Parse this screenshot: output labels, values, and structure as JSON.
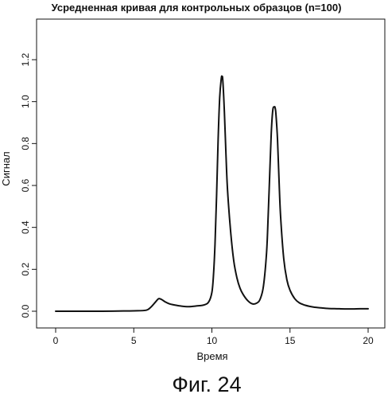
{
  "chart_data": {
    "type": "line",
    "title": "Усредненная кривая для контрольных образцов (n=100)",
    "xlabel": "Время",
    "ylabel": "Сигнал",
    "xlim": [
      0,
      20
    ],
    "ylim": [
      0,
      1.3
    ],
    "x_ticks": [
      "0",
      "5",
      "10",
      "15",
      "20"
    ],
    "y_ticks": [
      "0.0",
      "0.2",
      "0.4",
      "0.6",
      "0.8",
      "1.0",
      "1.2"
    ],
    "grid": false,
    "legend": "none",
    "line_color": "#111111",
    "series": [
      {
        "x": [
          0,
          1,
          2,
          3,
          4,
          5,
          5.8,
          6.1,
          6.4,
          6.6,
          6.8,
          7.0,
          7.3,
          7.6,
          8.0,
          8.5,
          9.0,
          9.5,
          9.8,
          10.0,
          10.1,
          10.2,
          10.3,
          10.4,
          10.5,
          10.6,
          10.65,
          10.7,
          10.8,
          10.9,
          11.0,
          11.2,
          11.4,
          11.6,
          11.8,
          12.0,
          12.3,
          12.6,
          12.9,
          13.1,
          13.3,
          13.5,
          13.6,
          13.7,
          13.8,
          13.9,
          14.0,
          14.05,
          14.1,
          14.2,
          14.3,
          14.4,
          14.6,
          14.8,
          15.0,
          15.3,
          15.6,
          16.0,
          16.5,
          17.0,
          17.5,
          18.0,
          18.5,
          19.0,
          19.5,
          20.0
        ],
        "y": [
          0.0,
          0.0,
          0.0,
          0.0,
          0.001,
          0.002,
          0.005,
          0.02,
          0.045,
          0.06,
          0.055,
          0.045,
          0.035,
          0.03,
          0.025,
          0.022,
          0.025,
          0.03,
          0.045,
          0.09,
          0.17,
          0.32,
          0.55,
          0.82,
          1.02,
          1.11,
          1.12,
          1.1,
          0.95,
          0.75,
          0.58,
          0.38,
          0.24,
          0.16,
          0.11,
          0.08,
          0.05,
          0.035,
          0.04,
          0.06,
          0.12,
          0.28,
          0.45,
          0.65,
          0.85,
          0.96,
          0.975,
          0.97,
          0.94,
          0.82,
          0.62,
          0.45,
          0.25,
          0.15,
          0.1,
          0.06,
          0.04,
          0.028,
          0.02,
          0.016,
          0.013,
          0.012,
          0.011,
          0.011,
          0.012,
          0.012
        ]
      }
    ]
  },
  "caption": "Фиг. 24"
}
